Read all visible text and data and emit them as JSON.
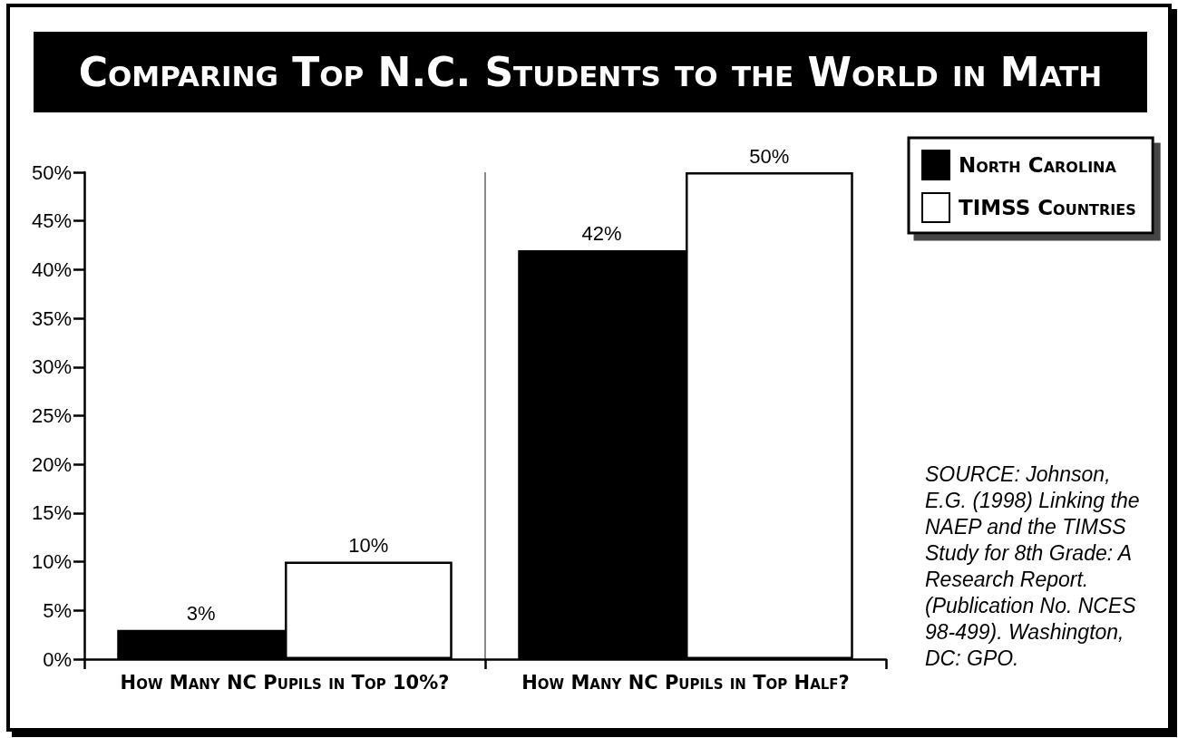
{
  "chart_data": {
    "type": "bar",
    "title": "Comparing Top N.C. Students to the World in Math",
    "categories": [
      "How Many NC Pupils in Top 10%?",
      "How Many NC Pupils in Top Half?"
    ],
    "series": [
      {
        "name": "North Carolina",
        "color": "#000000",
        "values": [
          3,
          42
        ],
        "value_labels": [
          "3%",
          "42%"
        ]
      },
      {
        "name": "TIMSS Countries",
        "color": "#ffffff",
        "values": [
          10,
          50
        ],
        "value_labels": [
          "10%",
          "50%"
        ]
      }
    ],
    "ylim": [
      0,
      50
    ],
    "yticks": [
      {
        "value": 0,
        "label": "0%"
      },
      {
        "value": 5,
        "label": "5%"
      },
      {
        "value": 10,
        "label": "10%"
      },
      {
        "value": 15,
        "label": "15%"
      },
      {
        "value": 20,
        "label": "20%"
      },
      {
        "value": 25,
        "label": "25%"
      },
      {
        "value": 30,
        "label": "30%"
      },
      {
        "value": 35,
        "label": "35%"
      },
      {
        "value": 40,
        "label": "40%"
      },
      {
        "value": 45,
        "label": "45%"
      },
      {
        "value": 50,
        "label": "50%"
      }
    ],
    "grid": "x",
    "legend": "top right",
    "annotations": [
      "SOURCE: Johnson, E.G. (1998) Linking the NAEP and the TIMSS Study for 8th Grade: A Research Report. (Publication No. NCES 98-499). Washington, DC: GPO."
    ]
  }
}
